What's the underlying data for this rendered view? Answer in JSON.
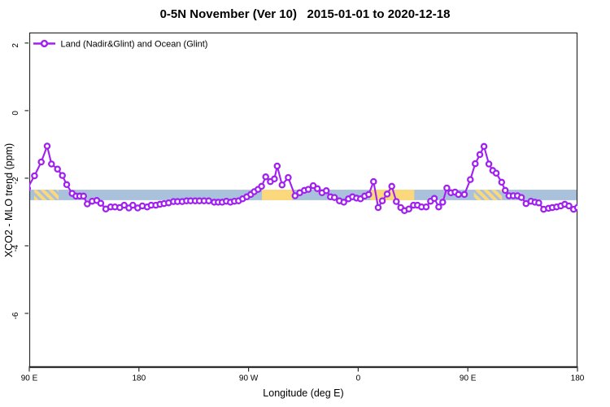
{
  "chart_data": {
    "type": "line",
    "title": "0-5N November (Ver 10)   2015-01-01 to 2020-12-18",
    "xlabel": "Longitude (deg E)",
    "ylabel": "XCO2 - MLO trend (ppm)",
    "legend": {
      "position": "top-left",
      "entries": [
        "Land (Nadir&Glint) and Ocean (Glint)"
      ]
    },
    "grid": false,
    "xlim": [
      90,
      540
    ],
    "ylim": [
      -7.59,
      2.31
    ],
    "xticks": [
      {
        "pos": 90,
        "label": "90 E"
      },
      {
        "pos": 180,
        "label": "180"
      },
      {
        "pos": 270,
        "label": "90 W"
      },
      {
        "pos": 360,
        "label": "0"
      },
      {
        "pos": 450,
        "label": "90 E"
      },
      {
        "pos": 540,
        "label": "180"
      }
    ],
    "yticks": [
      {
        "pos": 2,
        "label": "2"
      },
      {
        "pos": 0,
        "label": "0"
      },
      {
        "pos": -2,
        "label": "-2"
      },
      {
        "pos": -4,
        "label": "-4"
      },
      {
        "pos": -6,
        "label": "-6"
      }
    ],
    "band": {
      "note": "horizontal reference band spanning full x-range",
      "value_top": -2.34,
      "value_bottom": -2.65,
      "base_color": "#A9C1DB",
      "patches": [
        {
          "from": 94,
          "to": 114,
          "style": "hatched"
        },
        {
          "from": 281,
          "to": 306,
          "style": "solid"
        },
        {
          "from": 370,
          "to": 406,
          "style": "solid"
        },
        {
          "from": 455,
          "to": 478,
          "style": "hatched"
        }
      ],
      "patch_color": "#FBD87C"
    },
    "series": [
      {
        "name": "Land (Nadir&Glint) and Ocean (Glint)",
        "color": "#A020F0",
        "marker": "open-circle",
        "marker_fill": "#ffffff",
        "points": [
          [
            88.5,
            -2.3
          ],
          [
            94.3,
            -1.93
          ],
          [
            99.8,
            -1.52
          ],
          [
            104.7,
            -1.05
          ],
          [
            108.2,
            -1.58
          ],
          [
            113.2,
            -1.73
          ],
          [
            117.2,
            -1.92
          ],
          [
            120.7,
            -2.19
          ],
          [
            125.2,
            -2.45
          ],
          [
            128.3,
            -2.53
          ],
          [
            131.4,
            -2.53
          ],
          [
            134.5,
            -2.53
          ],
          [
            137.6,
            -2.76
          ],
          [
            141.6,
            -2.68
          ],
          [
            145.4,
            -2.66
          ],
          [
            148.7,
            -2.74
          ],
          [
            152.8,
            -2.91
          ],
          [
            156.8,
            -2.85
          ],
          [
            160.3,
            -2.85
          ],
          [
            164.3,
            -2.87
          ],
          [
            167.9,
            -2.8
          ],
          [
            171.7,
            -2.88
          ],
          [
            175.0,
            -2.8
          ],
          [
            179.0,
            -2.88
          ],
          [
            182.8,
            -2.82
          ],
          [
            186.8,
            -2.85
          ],
          [
            190.1,
            -2.8
          ],
          [
            193.9,
            -2.8
          ],
          [
            197.3,
            -2.77
          ],
          [
            200.6,
            -2.75
          ],
          [
            204.4,
            -2.73
          ],
          [
            208.4,
            -2.69
          ],
          [
            211.7,
            -2.69
          ],
          [
            215.5,
            -2.69
          ],
          [
            219.1,
            -2.67
          ],
          [
            222.4,
            -2.67
          ],
          [
            226.2,
            -2.67
          ],
          [
            229.7,
            -2.67
          ],
          [
            233.5,
            -2.67
          ],
          [
            237.3,
            -2.67
          ],
          [
            241.8,
            -2.71
          ],
          [
            245.1,
            -2.71
          ],
          [
            248.4,
            -2.71
          ],
          [
            251.8,
            -2.68
          ],
          [
            255.1,
            -2.71
          ],
          [
            258.4,
            -2.68
          ],
          [
            261.8,
            -2.67
          ],
          [
            265.1,
            -2.61
          ],
          [
            268.5,
            -2.55
          ],
          [
            271.8,
            -2.48
          ],
          [
            274.7,
            -2.4
          ],
          [
            277.8,
            -2.33
          ],
          [
            280.7,
            -2.24
          ],
          [
            284.1,
            -1.96
          ],
          [
            287.9,
            -2.1
          ],
          [
            291.2,
            -2.02
          ],
          [
            293.5,
            -1.64
          ],
          [
            297.5,
            -2.2
          ],
          [
            302.6,
            -1.98
          ],
          [
            308.2,
            -2.52
          ],
          [
            312.0,
            -2.43
          ],
          [
            315.8,
            -2.36
          ],
          [
            319.1,
            -2.33
          ],
          [
            323.1,
            -2.22
          ],
          [
            326.5,
            -2.31
          ],
          [
            330.3,
            -2.43
          ],
          [
            333.8,
            -2.37
          ],
          [
            337.2,
            -2.55
          ],
          [
            340.5,
            -2.57
          ],
          [
            344.6,
            -2.67
          ],
          [
            348.2,
            -2.71
          ],
          [
            352.0,
            -2.61
          ],
          [
            355.3,
            -2.55
          ],
          [
            358.6,
            -2.59
          ],
          [
            361.9,
            -2.61
          ],
          [
            365.3,
            -2.53
          ],
          [
            368.6,
            -2.48
          ],
          [
            372.6,
            -2.1
          ],
          [
            376.4,
            -2.87
          ],
          [
            379.8,
            -2.67
          ],
          [
            383.8,
            -2.47
          ],
          [
            387.6,
            -2.24
          ],
          [
            391.3,
            -2.69
          ],
          [
            394.9,
            -2.87
          ],
          [
            398.0,
            -2.96
          ],
          [
            401.6,
            -2.91
          ],
          [
            405.4,
            -2.8
          ],
          [
            408.7,
            -2.8
          ],
          [
            412.0,
            -2.85
          ],
          [
            415.8,
            -2.85
          ],
          [
            419.4,
            -2.68
          ],
          [
            422.5,
            -2.6
          ],
          [
            426.1,
            -2.85
          ],
          [
            429.4,
            -2.71
          ],
          [
            432.8,
            -2.29
          ],
          [
            436.1,
            -2.43
          ],
          [
            439.5,
            -2.41
          ],
          [
            442.3,
            -2.48
          ],
          [
            447.2,
            -2.48
          ],
          [
            452.1,
            -2.04
          ],
          [
            456.1,
            -1.57
          ],
          [
            459.9,
            -1.3
          ],
          [
            463.3,
            -1.06
          ],
          [
            467.3,
            -1.58
          ],
          [
            470.4,
            -1.77
          ],
          [
            473.3,
            -1.85
          ],
          [
            477.8,
            -2.12
          ],
          [
            480.7,
            -2.36
          ],
          [
            483.8,
            -2.52
          ],
          [
            487.3,
            -2.52
          ],
          [
            490.7,
            -2.52
          ],
          [
            494.0,
            -2.57
          ],
          [
            497.8,
            -2.75
          ],
          [
            501.8,
            -2.68
          ],
          [
            505.1,
            -2.71
          ],
          [
            508.2,
            -2.73
          ],
          [
            512.2,
            -2.92
          ],
          [
            516.2,
            -2.89
          ],
          [
            519.4,
            -2.87
          ],
          [
            522.9,
            -2.85
          ],
          [
            526.3,
            -2.82
          ],
          [
            529.6,
            -2.77
          ],
          [
            533.0,
            -2.82
          ],
          [
            536.8,
            -2.92
          ],
          [
            540.0,
            -2.87
          ]
        ]
      }
    ],
    "axis_color": "#2e2e2e"
  }
}
